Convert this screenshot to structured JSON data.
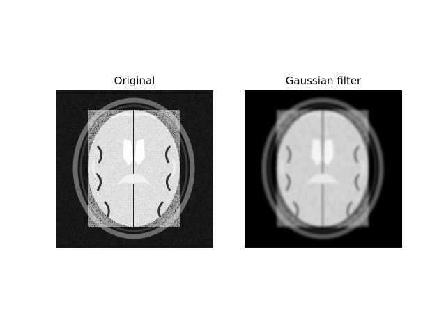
{
  "figure": {
    "panels": [
      {
        "title": "Original"
      },
      {
        "title": "Gaussian filter"
      }
    ]
  },
  "colors": {
    "background": "#ffffff",
    "image_background": "#000000",
    "tissue": "#cfcfcf",
    "ventricle": "#ffffff"
  }
}
